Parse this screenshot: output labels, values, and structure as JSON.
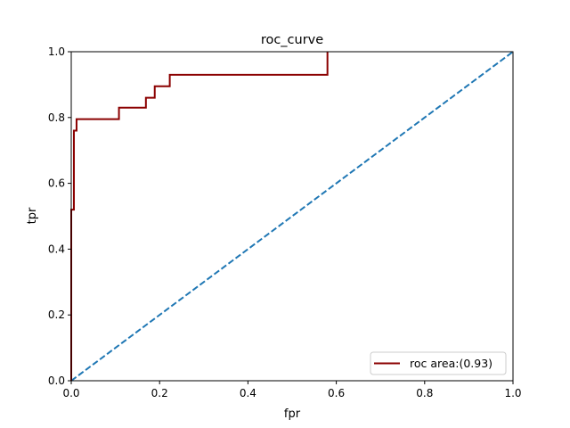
{
  "chart_data": {
    "type": "line",
    "title": "roc_curve",
    "xlabel": "fpr",
    "ylabel": "tpr",
    "xlim": [
      0,
      1
    ],
    "ylim": [
      0,
      1
    ],
    "xticks": [
      "0.0",
      "0.2",
      "0.4",
      "0.6",
      "0.8",
      "1.0"
    ],
    "yticks": [
      "0.0",
      "0.2",
      "0.4",
      "0.6",
      "0.8",
      "1.0"
    ],
    "grid": false,
    "legend_position": "lower-right",
    "series": [
      {
        "name": "roc area:(0.93)",
        "color": "#8b0000",
        "style": "solid",
        "x": [
          0.0,
          0.0,
          0.006,
          0.006,
          0.012,
          0.012,
          0.108,
          0.108,
          0.169,
          0.169,
          0.189,
          0.189,
          0.223,
          0.223,
          0.58,
          0.58
        ],
        "y": [
          0.0,
          0.52,
          0.52,
          0.76,
          0.76,
          0.795,
          0.795,
          0.83,
          0.83,
          0.86,
          0.86,
          0.895,
          0.895,
          0.93,
          0.93,
          1.0
        ]
      },
      {
        "name": "",
        "color": "#1f77b4",
        "style": "dashed",
        "x": [
          0,
          1
        ],
        "y": [
          0,
          1
        ]
      }
    ]
  }
}
